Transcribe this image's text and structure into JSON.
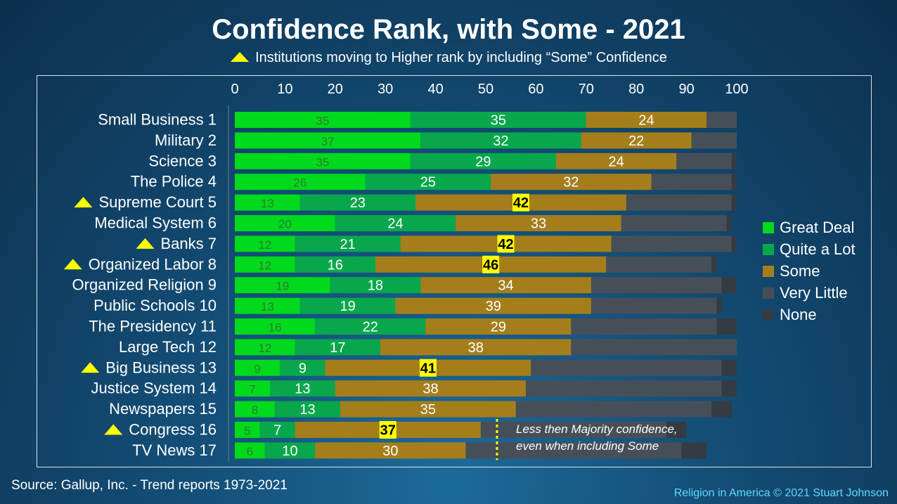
{
  "title": "Confidence Rank, with Some - 2021",
  "subtitle": "Institutions moving to Higher rank by including “Some” Confidence",
  "note_line1": "Less then Majority confidence,",
  "note_line2": "even when including Some",
  "source": "Source: Gallup, Inc. - Trend reports 1973-2021",
  "credit": "Religion in America © 2021 Stuart Johnson",
  "colors": {
    "great_deal": "#00d91c",
    "quite_a_lot": "#09a74c",
    "some": "#a57e1c",
    "very_little": "#464f58",
    "none": "#343b42",
    "highlight": "#ffff00",
    "triangle": "#ffff00"
  },
  "chart_data": {
    "type": "bar",
    "orientation": "horizontal",
    "stacked": true,
    "title": "Confidence Rank, with Some - 2021",
    "xlim": [
      0,
      100
    ],
    "xticks": [
      0,
      10,
      20,
      30,
      40,
      50,
      60,
      70,
      80,
      90,
      100
    ],
    "legend_position": "right",
    "categories": [
      "Small Business 1",
      "Military 2",
      "Science 3",
      "The Police 4",
      "Supreme Court 5",
      "Medical System 6",
      "Banks 7",
      "Organized Labor 8",
      "Organized Religion 9",
      "Public Schools 10",
      "The Presidency 11",
      "Large Tech 12",
      "Big Business 13",
      "Justice System 14",
      "Newspapers 15",
      "Congress 16",
      "TV News 17"
    ],
    "moved_higher": [
      false,
      false,
      false,
      false,
      true,
      false,
      true,
      true,
      false,
      false,
      false,
      false,
      true,
      false,
      false,
      true,
      false
    ],
    "series": [
      {
        "name": "Great Deal",
        "color": "#00d91c",
        "label_color": "#2e7d2e",
        "values": [
          35,
          37,
          35,
          26,
          13,
          20,
          12,
          12,
          19,
          13,
          16,
          12,
          9,
          7,
          8,
          5,
          6
        ]
      },
      {
        "name": "Quite a Lot",
        "color": "#09a74c",
        "label_color": "#ffffff",
        "values": [
          35,
          32,
          29,
          25,
          23,
          24,
          21,
          16,
          18,
          19,
          22,
          17,
          9,
          13,
          13,
          7,
          10
        ]
      },
      {
        "name": "Some",
        "color": "#a57e1c",
        "label_color": "#ffffff",
        "values": [
          24,
          22,
          24,
          32,
          42,
          33,
          42,
          46,
          34,
          39,
          29,
          38,
          41,
          38,
          35,
          37,
          30
        ]
      },
      {
        "name": "Very Little",
        "color": "#464f58",
        "label_color": null,
        "values": [
          6,
          9,
          11,
          16,
          21,
          21,
          24,
          21,
          26,
          25,
          29,
          33,
          38,
          39,
          39,
          37,
          43
        ]
      },
      {
        "name": "None",
        "color": "#343b42",
        "label_color": null,
        "values": [
          0,
          0,
          1,
          1,
          1,
          1,
          1,
          1,
          3,
          1,
          4,
          0,
          3,
          3,
          4,
          4,
          5
        ]
      }
    ],
    "highlighted_some": [
      false,
      false,
      false,
      false,
      true,
      false,
      true,
      true,
      false,
      false,
      false,
      false,
      true,
      false,
      false,
      true,
      false
    ],
    "majority_threshold": 50
  }
}
